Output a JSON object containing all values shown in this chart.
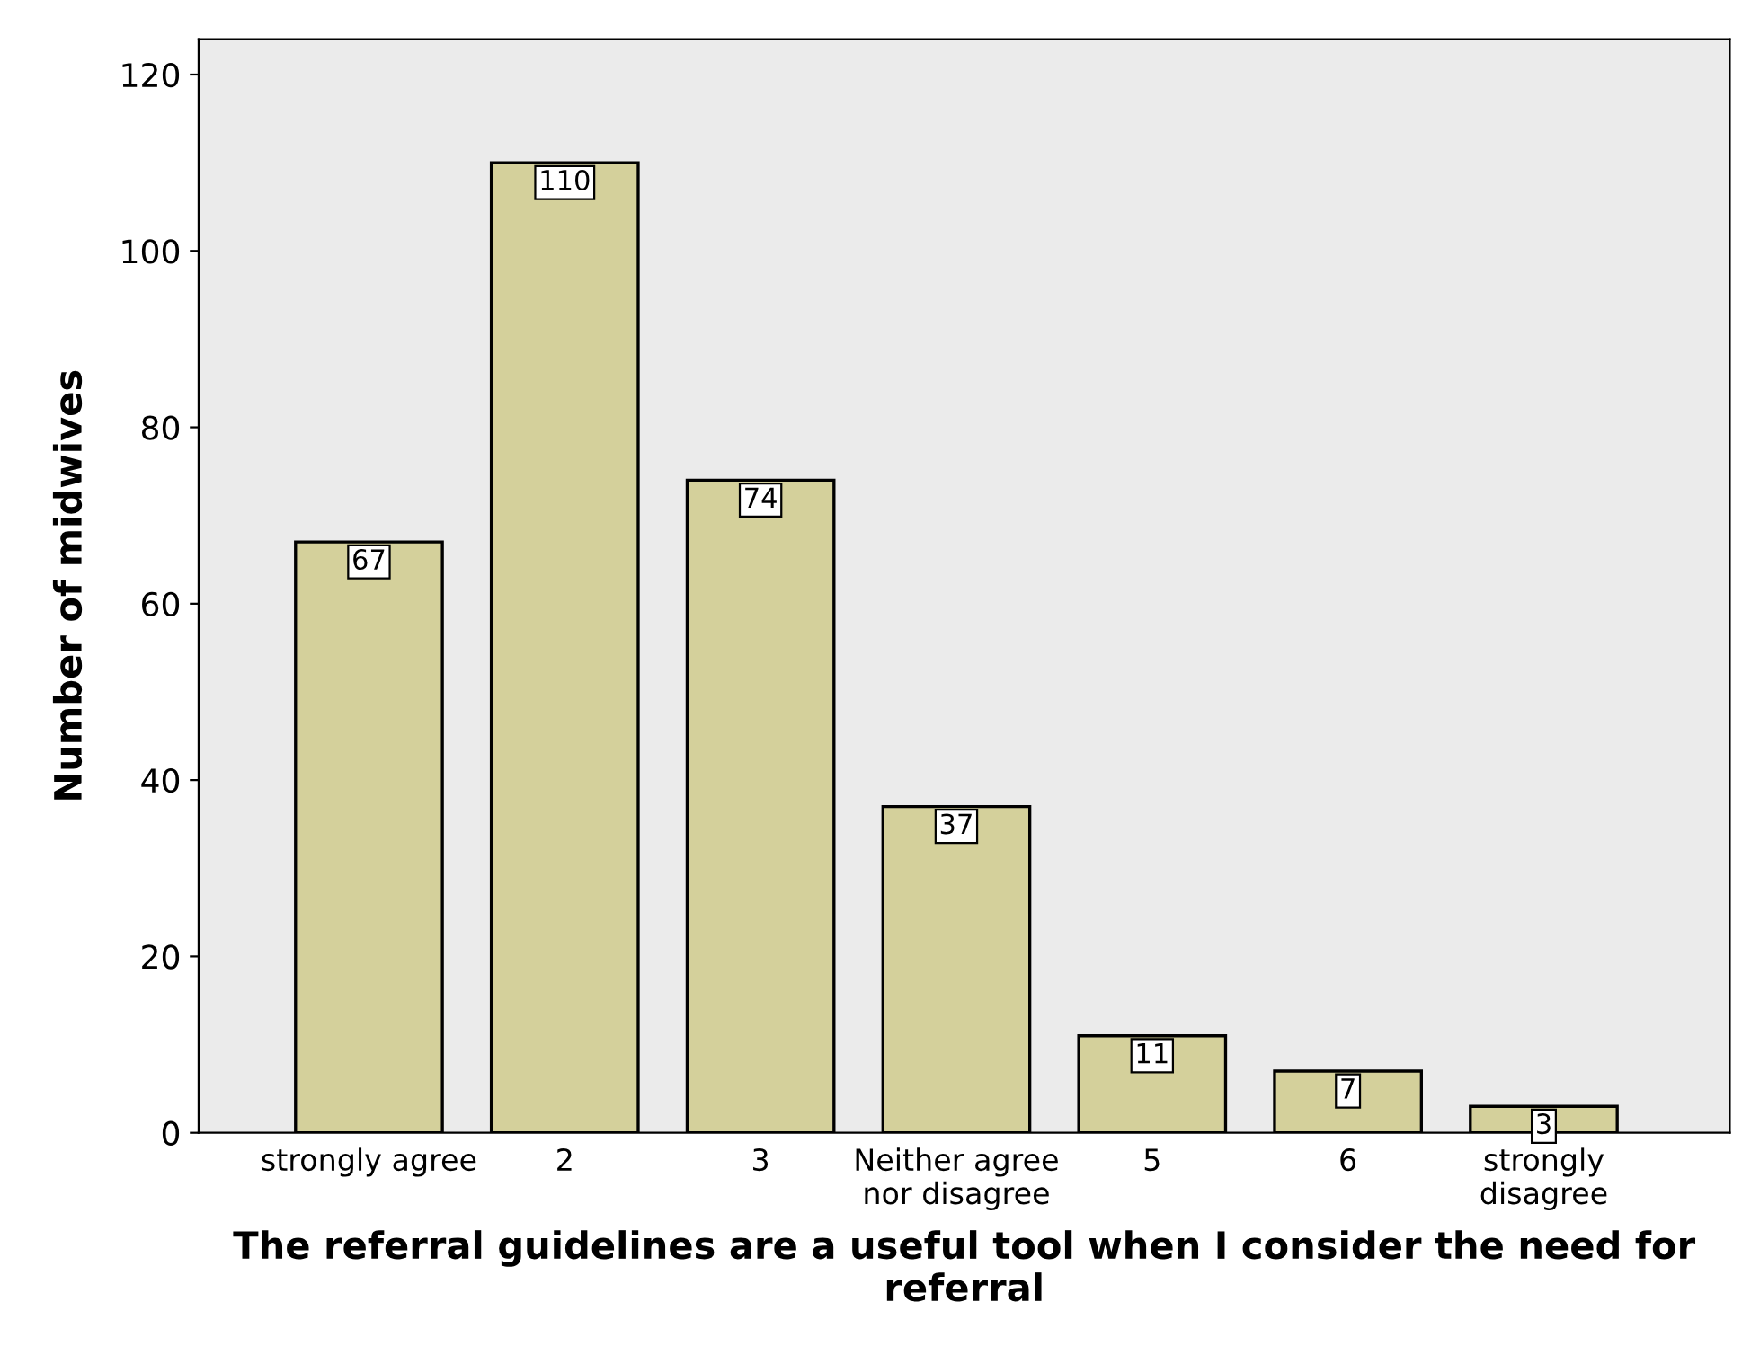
{
  "chart_data": {
    "type": "bar",
    "categories": [
      "strongly agree",
      "2",
      "3",
      "Neither agree\nnor disagree",
      "5",
      "6",
      "strongly\ndisagree"
    ],
    "values": [
      67,
      110,
      74,
      37,
      11,
      7,
      3
    ],
    "color": "#d4d09b",
    "xlabel": "The referral guidelines are a useful tool when I consider the need for referral",
    "ylabel": "Number of midwives",
    "ylim": [
      0,
      124
    ],
    "yticks": [
      0,
      20,
      40,
      60,
      80,
      100,
      120
    ],
    "data_labels": true,
    "grid": false,
    "legend": false
  }
}
